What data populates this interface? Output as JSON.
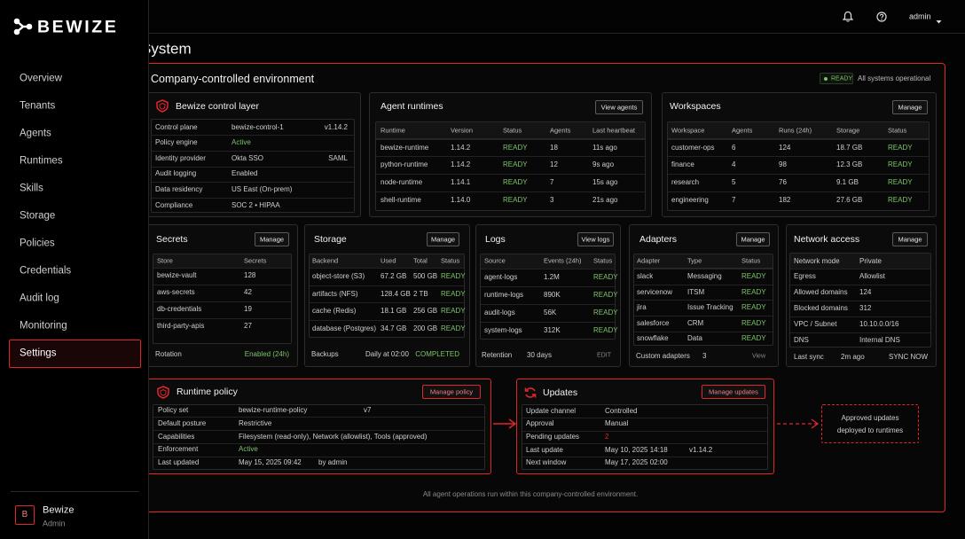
{
  "sidebar": {
    "brand": "BEWIZE",
    "nav": [
      "Overview",
      "Tenants",
      "Agents",
      "Runtimes",
      "Skills",
      "Storage",
      "Policies",
      "Credentials",
      "Audit log",
      "Monitoring",
      "Settings"
    ],
    "active": 10,
    "user": {
      "initial": "B",
      "name": "Bewize",
      "role": "Admin"
    }
  },
  "topbar": {
    "user": "admin"
  },
  "page": {
    "title": "System"
  },
  "environment": {
    "title": "Company-controlled environment",
    "status": "READY",
    "status_text": "All systems operational",
    "note": "All agent operations run within this company-controlled environment."
  },
  "control_layer": {
    "title": "Bewize control layer",
    "rows": [
      [
        "Control plane",
        "bewize-control-1",
        "v1.14.2"
      ],
      [
        "Policy engine",
        "Active"
      ],
      [
        "Identity provider",
        "Okta SSO",
        "SAML"
      ],
      [
        "Audit logging",
        "Enabled"
      ],
      [
        "Data residency",
        "US East (On-prem)"
      ],
      [
        "Compliance",
        "SOC 2 • HIPAA"
      ]
    ]
  },
  "agent_runtimes": {
    "title": "Agent runtimes",
    "action": "View agents",
    "columns": [
      "Runtime",
      "Version",
      "Status",
      "Agents",
      "Last heartbeat"
    ],
    "rows": [
      [
        "bewize-runtime",
        "1.14.2",
        "READY",
        18,
        "11s ago"
      ],
      [
        "python-runtime",
        "1.14.2",
        "READY",
        12,
        "9s ago"
      ],
      [
        "node-runtime",
        "1.14.1",
        "READY",
        7,
        "15s ago"
      ],
      [
        "shell-runtime",
        "1.14.0",
        "READY",
        3,
        "21s ago"
      ]
    ]
  },
  "workspaces": {
    "title": "Workspaces",
    "action": "Manage",
    "columns": [
      "Workspace",
      "Agents",
      "Runs (24h)",
      "Storage",
      "Status"
    ],
    "rows": [
      [
        "customer-ops",
        6,
        124,
        "18.7 GB",
        "READY"
      ],
      [
        "finance",
        4,
        98,
        "12.3 GB",
        "READY"
      ],
      [
        "research",
        5,
        76,
        "9.1 GB",
        "READY"
      ],
      [
        "engineering",
        7,
        182,
        "27.6 GB",
        "READY"
      ]
    ]
  },
  "secrets": {
    "title": "Secrets",
    "action": "Manage",
    "columns": [
      "Store",
      "Secrets"
    ],
    "rows": [
      [
        "bewize-vault",
        128
      ],
      [
        "aws-secrets",
        42
      ],
      [
        "db-credentials",
        19
      ],
      [
        "third-party-apis",
        27
      ]
    ],
    "footer": [
      "Rotation",
      "Enabled (24h)"
    ]
  },
  "storage": {
    "title": "Storage",
    "action": "Manage",
    "columns": [
      "Backend",
      "Used",
      "Total",
      "Status"
    ],
    "rows": [
      [
        "object-store (S3)",
        "67.2 GB",
        "500 GB",
        "READY"
      ],
      [
        "artifacts (NFS)",
        "128.4 GB",
        "2 TB",
        "READY"
      ],
      [
        "cache (Redis)",
        "18.1 GB",
        "256 GB",
        "READY"
      ],
      [
        "database (Postgres)",
        "34.7 GB",
        "200 GB",
        "READY"
      ]
    ],
    "footer": [
      "Backups",
      "Daily at 02:00",
      "COMPLETED"
    ]
  },
  "logs": {
    "title": "Logs",
    "action": "View logs",
    "columns": [
      "Source",
      "Events (24h)",
      "Status"
    ],
    "rows": [
      [
        "agent-logs",
        "1.2M",
        "READY"
      ],
      [
        "runtime-logs",
        "890K",
        "READY"
      ],
      [
        "audit-logs",
        "56K",
        "READY"
      ],
      [
        "system-logs",
        "312K",
        "READY"
      ]
    ],
    "footer": [
      "Retention",
      "30 days",
      "EDIT"
    ]
  },
  "adapters": {
    "title": "Adapters",
    "action": "Manage",
    "columns": [
      "Adapter",
      "Type",
      "Status"
    ],
    "rows": [
      [
        "slack",
        "Messaging",
        "READY"
      ],
      [
        "servicenow",
        "ITSM",
        "READY"
      ],
      [
        "jira",
        "Issue Tracking",
        "READY"
      ],
      [
        "salesforce",
        "CRM",
        "READY"
      ],
      [
        "snowflake",
        "Data",
        "READY"
      ]
    ],
    "footer": [
      "Custom adapters",
      "3",
      "View"
    ]
  },
  "network_access": {
    "title": "Network access",
    "action": "Manage",
    "rows": [
      [
        "Network mode",
        "Private"
      ],
      [
        "Egress",
        "Allowlist"
      ],
      [
        "Allowed domains",
        "124"
      ],
      [
        "Blocked domains",
        "312"
      ],
      [
        "VPC / Subnet",
        "10.10.0.0/16"
      ],
      [
        "DNS",
        "Internal DNS"
      ]
    ],
    "footer": [
      "Last sync",
      "2m ago",
      "SYNC NOW"
    ]
  },
  "runtime_policy": {
    "title": "Runtime policy",
    "action": "Manage policy",
    "rows": [
      [
        "Policy set",
        "bewize-runtime-policy",
        "v7"
      ],
      [
        "Default posture",
        "Restrictive"
      ],
      [
        "Capabilities",
        "Filesystem (read-only), Network (allowlist), Tools (approved)"
      ],
      [
        "Enforcement",
        "Active"
      ],
      [
        "Last updated",
        "May 15, 2025 09:42",
        "by admin"
      ]
    ]
  },
  "updates": {
    "title": "Updates",
    "action": "Manage updates",
    "rows": [
      [
        "Update channel",
        "Controlled"
      ],
      [
        "Approval",
        "Manual"
      ],
      [
        "Pending updates",
        "2"
      ],
      [
        "Last update",
        "May 10, 2025 14:18",
        "v1.14.2"
      ],
      [
        "Next window",
        "May 17, 2025 02:00"
      ]
    ]
  },
  "approval_flow": {
    "lines": [
      "Approved updates",
      "deployed to runtimes"
    ]
  }
}
